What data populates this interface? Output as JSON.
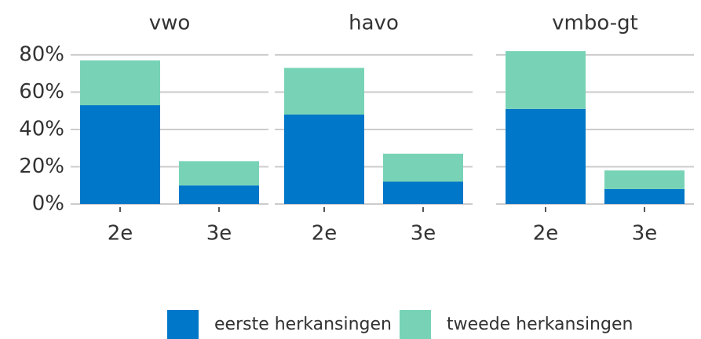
{
  "chart_data": [
    {
      "type": "bar",
      "title": "vwo",
      "categories": [
        "2e",
        "3e"
      ],
      "stacked": true,
      "ylim": [
        0,
        85
      ],
      "yticks": [
        {
          "value": 0,
          "label": "0%"
        },
        {
          "value": 20,
          "label": "20%"
        },
        {
          "value": 40,
          "label": "40%"
        },
        {
          "value": 60,
          "label": "60%"
        },
        {
          "value": 80,
          "label": "80%"
        }
      ],
      "grid": true,
      "legend": "bottom",
      "series": [
        {
          "name": "eerste herkansingen",
          "color": "#0077c8",
          "values": [
            53,
            10
          ]
        },
        {
          "name": "tweede herkansingen",
          "color": "#78d3b6",
          "values": [
            24,
            13
          ]
        }
      ]
    },
    {
      "type": "bar",
      "title": "havo",
      "categories": [
        "2e",
        "3e"
      ],
      "stacked": true,
      "ylim": [
        0,
        85
      ],
      "yticks": [
        0,
        20,
        40,
        60,
        80
      ],
      "grid": true,
      "series": [
        {
          "color": "#0077c8",
          "values": [
            48,
            12
          ]
        },
        {
          "color": "#78d3b6",
          "values": [
            25,
            15
          ]
        }
      ]
    },
    {
      "type": "bar",
      "title": "vmbo-gt",
      "categories": [
        "2e",
        "3e"
      ],
      "stacked": true,
      "ylim": [
        0,
        85
      ],
      "yticks": [
        0,
        20,
        40,
        60,
        80
      ],
      "grid": true,
      "series": [
        {
          "color": "#0077c8",
          "values": [
            51,
            8
          ]
        },
        {
          "color": "#78d3b6",
          "values": [
            31,
            10
          ]
        }
      ]
    }
  ]
}
